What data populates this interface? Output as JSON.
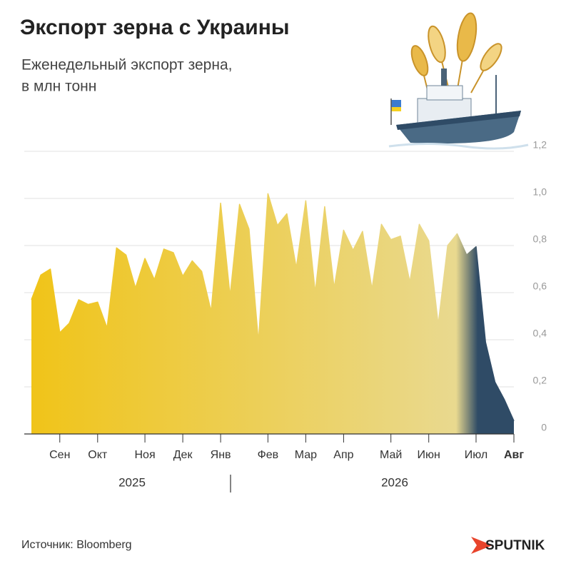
{
  "chart_data": {
    "type": "area",
    "title": "Экспорт зерна с Украины",
    "subtitle": [
      "Еженедельный экспорт зерна,",
      "в млн тонн"
    ],
    "categories": [
      null,
      null,
      null,
      "Сен",
      null,
      null,
      null,
      "Окт",
      null,
      null,
      null,
      null,
      "Ноя",
      null,
      null,
      null,
      "Дек",
      null,
      null,
      null,
      "Янв",
      null,
      null,
      null,
      null,
      "Фев",
      null,
      null,
      null,
      "Мар",
      null,
      null,
      null,
      "Апр",
      null,
      null,
      null,
      null,
      "Май",
      null,
      null,
      null,
      "Июн",
      null,
      null,
      null,
      null,
      "Июл",
      null,
      null,
      null,
      "Авг"
    ],
    "values": [
      0.57,
      0.675,
      0.7,
      0.43,
      0.47,
      0.57,
      0.55,
      0.56,
      0.45,
      0.79,
      0.76,
      0.62,
      0.745,
      0.655,
      0.785,
      0.77,
      0.67,
      0.735,
      0.69,
      0.52,
      0.98,
      0.585,
      0.975,
      0.87,
      0.39,
      1.02,
      0.885,
      0.935,
      0.705,
      0.99,
      0.6,
      0.965,
      0.62,
      0.865,
      0.78,
      0.86,
      0.615,
      0.89,
      0.825,
      0.84,
      0.645,
      0.89,
      0.82,
      0.465,
      0.8,
      0.85,
      0.76,
      0.795,
      0.39,
      0.22,
      0.145,
      0.055
    ],
    "color": "#f0c419",
    "end_color": "#2f4b66",
    "ylim": [
      0,
      1.2
    ],
    "yticks": [
      0,
      {
        "value": 0.2,
        "label": "0,2"
      },
      {
        "value": 0.4,
        "label": "0,4"
      },
      {
        "value": 0.6,
        "label": "0,6"
      },
      {
        "value": 0.8,
        "label": "0,8"
      },
      {
        "value": 1.0,
        "label": "1,0"
      },
      {
        "value": 1.2,
        "label": "1,2"
      }
    ],
    "grid": true,
    "year_labels": [
      "2025",
      "2026"
    ],
    "source": "Источник: Bloomberg",
    "brand": "SPUTNIK"
  }
}
